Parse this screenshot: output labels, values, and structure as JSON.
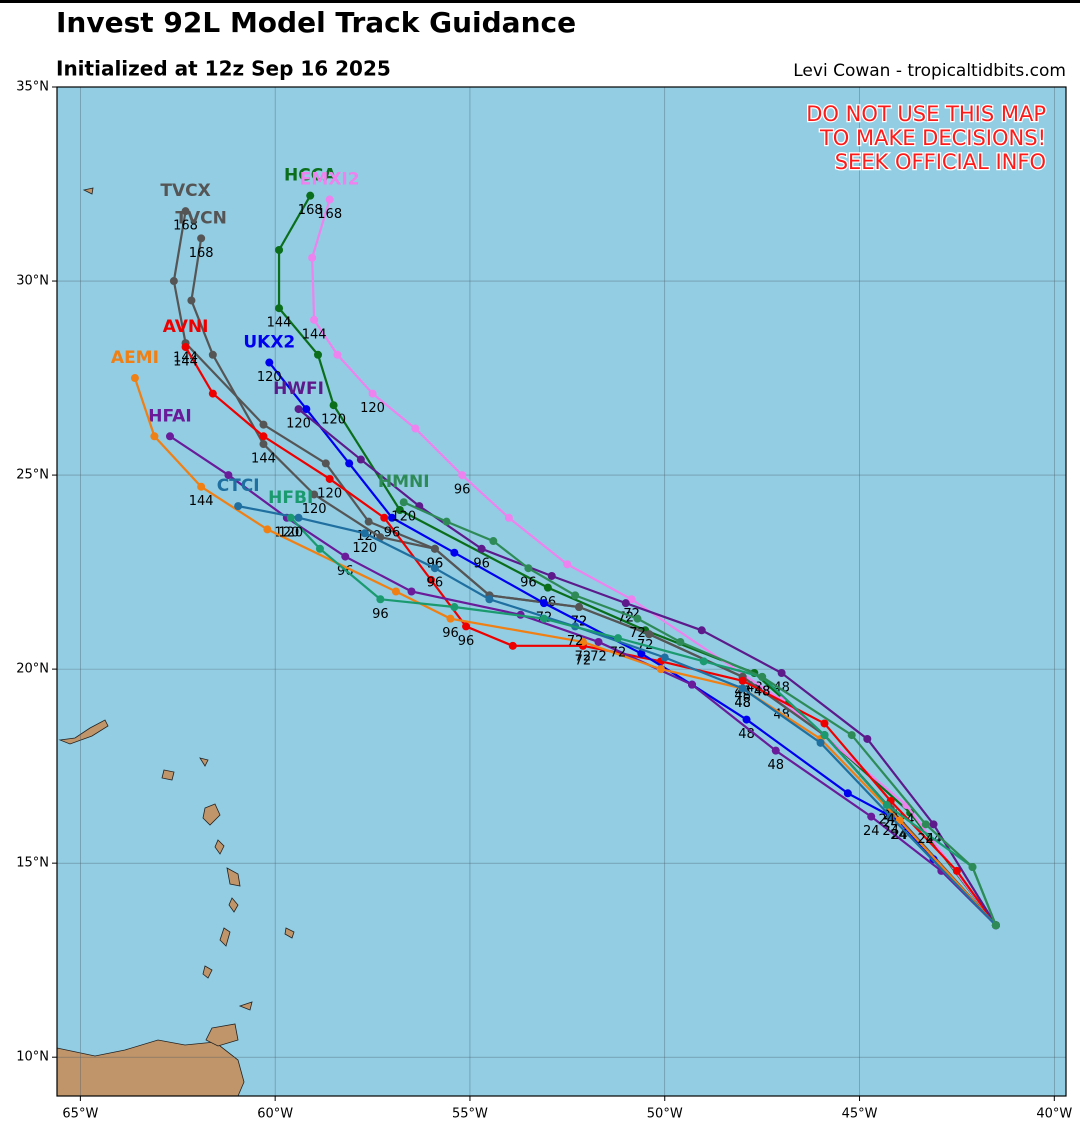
{
  "header": {
    "title": "Invest 92L Model Track Guidance",
    "subtitle": "Initialized at 12z Sep 16 2025",
    "credit": "Levi Cowan - tropicaltidbits.com"
  },
  "map": {
    "xlim": [
      -65.6,
      -39.7
    ],
    "ylim": [
      9,
      35
    ],
    "xticks": [
      {
        "value": -65,
        "label": "65°W"
      },
      {
        "value": -60,
        "label": "60°W"
      },
      {
        "value": -55,
        "label": "55°W"
      },
      {
        "value": -50,
        "label": "50°W"
      },
      {
        "value": -45,
        "label": "45°W"
      },
      {
        "value": -40,
        "label": "40°W"
      }
    ],
    "yticks": [
      {
        "value": 35,
        "label": "35°N"
      },
      {
        "value": 30,
        "label": "30°N"
      },
      {
        "value": 25,
        "label": "25°N"
      },
      {
        "value": 20,
        "label": "20°N"
      },
      {
        "value": 15,
        "label": "15°N"
      },
      {
        "value": 10,
        "label": "10°N"
      }
    ],
    "grid": true,
    "warning": [
      "DO NOT USE THIS MAP",
      "TO MAKE DECISIONS!",
      "SEEK OFFICIAL INFO"
    ],
    "tracks": [
      {
        "name": "HCCA",
        "color": "#0b6e1b",
        "lon": [
          -41.5,
          -43.7,
          -47.7,
          -50.5,
          -53.0,
          -56.8,
          -58.5,
          -58.9,
          -59.9,
          -59.9,
          -59.1
        ],
        "lat": [
          13.4,
          16.3,
          19.9,
          21.0,
          22.1,
          24.1,
          26.8,
          28.1,
          29.3,
          30.8,
          32.2
        ],
        "hours": [
          null,
          null,
          48,
          72,
          96,
          null,
          120,
          null,
          144,
          null,
          168
        ]
      },
      {
        "name": "EMXI2",
        "color": "#ee82ee",
        "lon": [
          -41.5,
          -43.8,
          -47.0,
          -50.85,
          -52.5,
          -54.0,
          -55.2,
          -56.4,
          -57.5,
          -58.4,
          -59.0,
          -59.05,
          -58.6
        ],
        "lat": [
          13.4,
          16.5,
          19.2,
          21.8,
          22.7,
          23.9,
          25.0,
          26.2,
          27.1,
          28.1,
          29.0,
          30.6,
          32.1
        ],
        "hours": [
          null,
          24,
          48,
          72,
          null,
          null,
          96,
          null,
          120,
          null,
          144,
          null,
          168
        ]
      },
      {
        "name": "TVCX",
        "color": "#555555",
        "lon": [
          -41.5,
          -44.2,
          -45.9,
          -48.0,
          -50.4,
          -52.2,
          -54.5,
          -55.9,
          -57.6,
          -58.7,
          -60.3,
          -62.3,
          -62.6,
          -62.3
        ],
        "lat": [
          13.4,
          16.4,
          18.3,
          19.8,
          20.9,
          21.6,
          21.9,
          23.1,
          23.8,
          25.3,
          26.3,
          28.4,
          30.0,
          31.8
        ],
        "hours": [
          null,
          24,
          null,
          48,
          null,
          72,
          null,
          96,
          120,
          null,
          null,
          144,
          null,
          168
        ]
      },
      {
        "name": "TVCN",
        "color": "#555555",
        "lon": [
          -41.5,
          -44.2,
          -45.9,
          -48.0,
          -50.4,
          -52.2,
          -54.5,
          -55.9,
          -57.3,
          -59.0,
          -60.3,
          -61.6,
          -62.15,
          -61.9
        ],
        "lat": [
          13.4,
          16.4,
          18.3,
          19.8,
          20.9,
          21.6,
          21.9,
          23.1,
          23.4,
          24.5,
          25.8,
          28.1,
          29.5,
          31.1
        ],
        "hours": [
          null,
          24,
          null,
          48,
          null,
          72,
          null,
          96,
          null,
          120,
          144,
          null,
          null,
          168
        ]
      },
      {
        "name": "AVNI",
        "color": "#ee0000",
        "lon": [
          -41.5,
          -42.5,
          -44.2,
          -45.9,
          -48.0,
          -50.1,
          -52.1,
          -53.9,
          -55.1,
          -56.0,
          -57.2,
          -58.6,
          -60.3,
          -61.6,
          -62.3
        ],
        "lat": [
          13.4,
          14.8,
          16.6,
          18.6,
          19.7,
          20.2,
          20.6,
          20.6,
          21.1,
          22.3,
          23.9,
          24.9,
          26.0,
          27.1,
          28.3
        ],
        "hours": [
          null,
          null,
          24,
          null,
          48,
          null,
          72,
          null,
          96,
          null,
          null,
          120,
          null,
          null,
          144
        ]
      },
      {
        "name": "UKX2",
        "color": "#0000ee",
        "lon": [
          -41.5,
          -43.1,
          -44.0,
          -45.3,
          -47.9,
          -49.3,
          -50.6,
          -53.1,
          -55.4,
          -57.0,
          -58.1,
          -59.2,
          -60.15
        ],
        "lat": [
          13.4,
          15.1,
          16.1,
          16.8,
          18.7,
          19.6,
          20.4,
          21.7,
          23.0,
          23.9,
          25.3,
          26.7,
          27.9
        ],
        "hours": [
          null,
          null,
          24,
          null,
          48,
          null,
          null,
          72,
          null,
          96,
          null,
          null,
          120
        ]
      },
      {
        "name": "HWFI",
        "color": "#5c1a8b",
        "lon": [
          -41.5,
          -43.1,
          -44.8,
          -47.0,
          -49.05,
          -51.0,
          -52.9,
          -54.7,
          -56.3,
          -57.8,
          -59.4
        ],
        "lat": [
          13.4,
          16.0,
          18.2,
          19.9,
          21.0,
          21.7,
          22.4,
          23.1,
          24.2,
          25.4,
          26.7
        ],
        "hours": [
          null,
          24,
          null,
          48,
          null,
          72,
          null,
          96,
          null,
          null,
          120
        ]
      },
      {
        "name": "HFAI",
        "color": "#6a1b9a",
        "lon": [
          -41.5,
          -42.9,
          -44.7,
          -47.15,
          -49.3,
          -51.7,
          -53.7,
          -56.5,
          -58.2,
          -59.7,
          -61.2,
          -62.7
        ],
        "lat": [
          13.4,
          14.8,
          16.2,
          17.9,
          19.6,
          20.7,
          21.4,
          22.0,
          22.9,
          23.9,
          25.0,
          26.0
        ],
        "hours": [
          null,
          null,
          24,
          48,
          null,
          72,
          null,
          null,
          96,
          120,
          null,
          null
        ]
      },
      {
        "name": "AEMI",
        "color": "#f07f14",
        "lon": [
          -41.5,
          -43.97,
          -46.0,
          -48.0,
          -50.1,
          -52.1,
          -55.5,
          -56.9,
          -60.2,
          -61.9,
          -63.1,
          -63.6
        ],
        "lat": [
          13.4,
          16.1,
          18.2,
          19.5,
          20.0,
          20.7,
          21.3,
          22.0,
          23.6,
          24.7,
          26.0,
          27.5
        ],
        "hours": [
          null,
          24,
          null,
          48,
          null,
          72,
          96,
          null,
          null,
          144,
          null,
          null
        ]
      },
      {
        "name": "CTCI",
        "color": "#1f6fa0",
        "lon": [
          -41.5,
          -44.2,
          -46.0,
          -48.0,
          -50.0,
          -52.3,
          -54.5,
          -55.9,
          -57.7,
          -59.4,
          -60.95
        ],
        "lat": [
          13.4,
          16.2,
          18.1,
          19.5,
          20.3,
          21.1,
          21.8,
          22.6,
          23.5,
          23.9,
          24.2
        ],
        "hours": [
          null,
          24,
          null,
          48,
          null,
          72,
          null,
          96,
          120,
          null,
          null
        ]
      },
      {
        "name": "HFBI",
        "color": "#1a9a6e",
        "lon": [
          -41.5,
          -42.1,
          -44.3,
          -45.9,
          -47.5,
          -49.0,
          -51.2,
          -53.1,
          -55.4,
          -57.3,
          -58.85,
          -59.6
        ],
        "lat": [
          13.4,
          14.9,
          16.5,
          18.3,
          19.8,
          20.2,
          20.8,
          21.3,
          21.6,
          21.8,
          23.1,
          23.9
        ],
        "hours": [
          null,
          null,
          24,
          null,
          48,
          null,
          72,
          null,
          null,
          96,
          null,
          120
        ]
      },
      {
        "name": "HMNI",
        "color": "#2e8b57",
        "lon": [
          -41.5,
          -42.1,
          -43.3,
          -45.2,
          -47.5,
          -49.6,
          -50.7,
          -52.3,
          -53.5,
          -54.4,
          -55.6,
          -56.7
        ],
        "lat": [
          13.4,
          14.9,
          16.0,
          18.3,
          19.8,
          20.7,
          21.3,
          21.9,
          22.6,
          23.3,
          23.8,
          24.3
        ],
        "hours": [
          null,
          null,
          24,
          null,
          48,
          null,
          72,
          null,
          96,
          null,
          null,
          120
        ]
      }
    ]
  }
}
